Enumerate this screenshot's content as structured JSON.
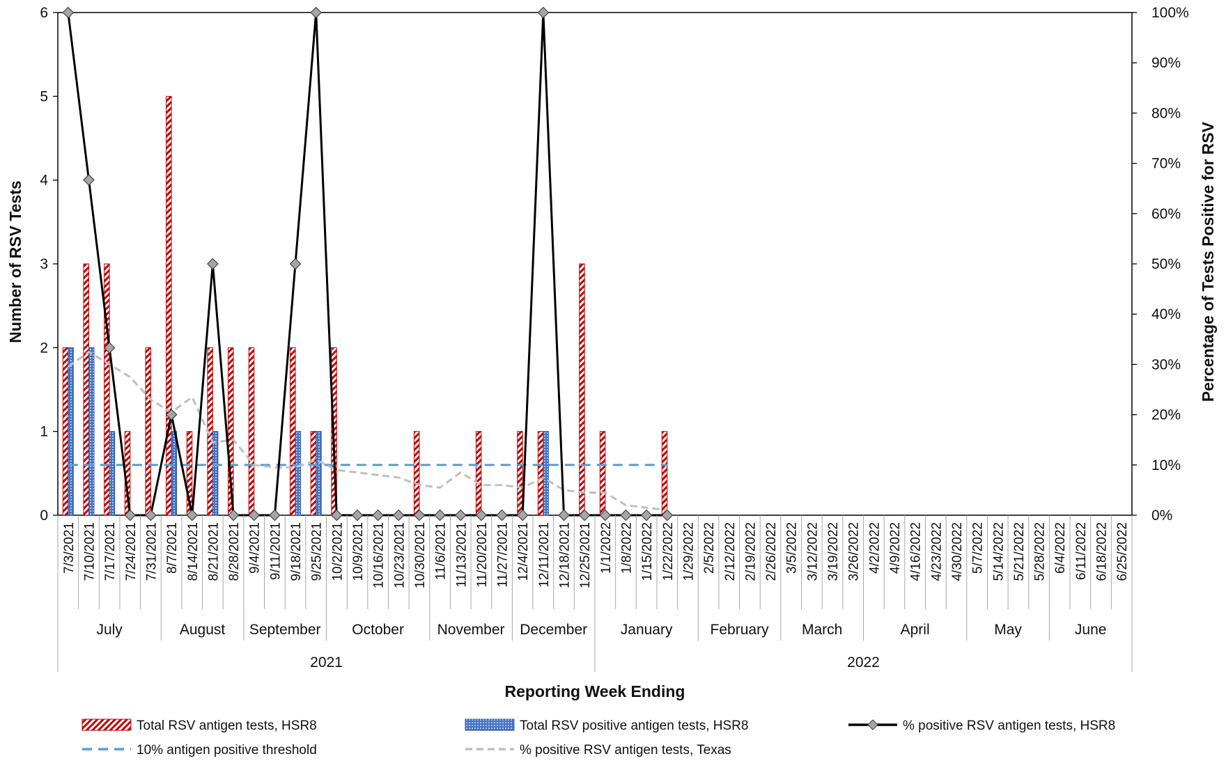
{
  "chart_data": {
    "type": "bar",
    "ylabel_left": "Number of RSV Tests",
    "ylabel_right": "Percentage of Tests Positive for RSV",
    "xlabel": "Reporting Week Ending",
    "ylim_left": [
      0,
      6
    ],
    "yticks_left": [
      "0",
      "1",
      "2",
      "3",
      "4",
      "5",
      "6"
    ],
    "ylim_right": [
      0,
      100
    ],
    "yticks_right": [
      "0%",
      "10%",
      "20%",
      "30%",
      "40%",
      "50%",
      "60%",
      "70%",
      "80%",
      "90%",
      "100%"
    ],
    "grid": false,
    "legend_position": "bottom",
    "categories": [
      "7/3/2021",
      "7/10/2021",
      "7/17/2021",
      "7/24/2021",
      "7/31/2021",
      "8/7/2021",
      "8/14/2021",
      "8/21/2021",
      "8/28/2021",
      "9/4/2021",
      "9/11/2021",
      "9/18/2021",
      "9/25/2021",
      "10/2/2021",
      "10/9/2021",
      "10/16/2021",
      "10/23/2021",
      "10/30/2021",
      "11/6/2021",
      "11/13/2021",
      "11/20/2021",
      "11/27/2021",
      "12/4/2021",
      "12/11/2021",
      "12/18/2021",
      "12/25/2021",
      "1/1/2022",
      "1/8/2022",
      "1/15/2022",
      "1/22/2022",
      "1/29/2022",
      "2/5/2022",
      "2/12/2022",
      "2/19/2022",
      "2/26/2022",
      "3/5/2022",
      "3/12/2022",
      "3/19/2022",
      "3/26/2022",
      "4/2/2022",
      "4/9/2022",
      "4/16/2022",
      "4/23/2022",
      "4/30/2022",
      "5/7/2022",
      "5/14/2022",
      "5/21/2022",
      "5/28/2022",
      "6/4/2022",
      "6/11/2022",
      "6/18/2022",
      "6/25/2022"
    ],
    "months": [
      {
        "label": "July",
        "count": 5
      },
      {
        "label": "August",
        "count": 4
      },
      {
        "label": "September",
        "count": 4
      },
      {
        "label": "October",
        "count": 5
      },
      {
        "label": "November",
        "count": 4
      },
      {
        "label": "December",
        "count": 4
      },
      {
        "label": "January",
        "count": 5
      },
      {
        "label": "February",
        "count": 4
      },
      {
        "label": "March",
        "count": 4
      },
      {
        "label": "April",
        "count": 5
      },
      {
        "label": "May",
        "count": 4
      },
      {
        "label": "June",
        "count": 4
      }
    ],
    "years": [
      {
        "label": "2021",
        "count": 26
      },
      {
        "label": "2022",
        "count": 26
      }
    ],
    "series": [
      {
        "name": "Total RSV antigen tests, HSR8",
        "type": "bar",
        "axis": "left",
        "color": "#c00000",
        "values": [
          2,
          3,
          3,
          1,
          2,
          5,
          1,
          2,
          2,
          2,
          0,
          2,
          1,
          2,
          0,
          0,
          0,
          1,
          0,
          0,
          1,
          0,
          1,
          1,
          0,
          3,
          1,
          0,
          0,
          1,
          null,
          null,
          null,
          null,
          null,
          null,
          null,
          null,
          null,
          null,
          null,
          null,
          null,
          null,
          null,
          null,
          null,
          null,
          null,
          null,
          null,
          null
        ]
      },
      {
        "name": "Total RSV positive antigen tests, HSR8",
        "type": "bar",
        "axis": "left",
        "color": "#4472c4",
        "values": [
          2,
          2,
          1,
          0,
          0,
          1,
          0,
          1,
          0,
          0,
          0,
          1,
          1,
          0,
          0,
          0,
          0,
          0,
          0,
          0,
          0,
          0,
          0,
          1,
          0,
          0,
          0,
          0,
          0,
          0,
          null,
          null,
          null,
          null,
          null,
          null,
          null,
          null,
          null,
          null,
          null,
          null,
          null,
          null,
          null,
          null,
          null,
          null,
          null,
          null,
          null,
          null
        ]
      },
      {
        "name": "% positive RSV antigen tests, HSR8",
        "type": "line",
        "axis": "right",
        "color": "#000000",
        "values": [
          100,
          66.7,
          33.3,
          0,
          0,
          20,
          0,
          50,
          0,
          0,
          0,
          50,
          100,
          0,
          0,
          0,
          0,
          0,
          0,
          0,
          0,
          0,
          0,
          100,
          0,
          0,
          0,
          0,
          0,
          0,
          null,
          null,
          null,
          null,
          null,
          null,
          null,
          null,
          null,
          null,
          null,
          null,
          null,
          null,
          null,
          null,
          null,
          null,
          null,
          null,
          null,
          null
        ]
      },
      {
        "name": "10% antigen positive threshold",
        "type": "line",
        "axis": "right",
        "color": "#5b9bd5",
        "values": [
          10,
          10,
          10,
          10,
          10,
          10,
          10,
          10,
          10,
          10,
          10,
          10,
          10,
          10,
          10,
          10,
          10,
          10,
          10,
          10,
          10,
          10,
          10,
          10,
          10,
          10,
          10,
          10,
          10,
          10,
          null,
          null,
          null,
          null,
          null,
          null,
          null,
          null,
          null,
          null,
          null,
          null,
          null,
          null,
          null,
          null,
          null,
          null,
          null,
          null,
          null,
          null
        ]
      },
      {
        "name": "% positive RSV antigen tests, Texas",
        "type": "line",
        "axis": "right",
        "color": "#c0c0c0",
        "values": [
          29.5,
          32.5,
          30,
          27.5,
          23,
          20.5,
          23.5,
          14.5,
          15,
          10,
          9.5,
          9.5,
          11,
          9,
          8.5,
          8,
          7.5,
          6,
          5.5,
          8.5,
          6,
          6,
          5.5,
          7.5,
          5,
          4.5,
          4.5,
          2,
          1.5,
          1,
          null,
          null,
          null,
          null,
          null,
          null,
          null,
          null,
          null,
          null,
          null,
          null,
          null,
          null,
          null,
          null,
          null,
          null,
          null,
          null,
          null,
          null
        ]
      }
    ]
  }
}
